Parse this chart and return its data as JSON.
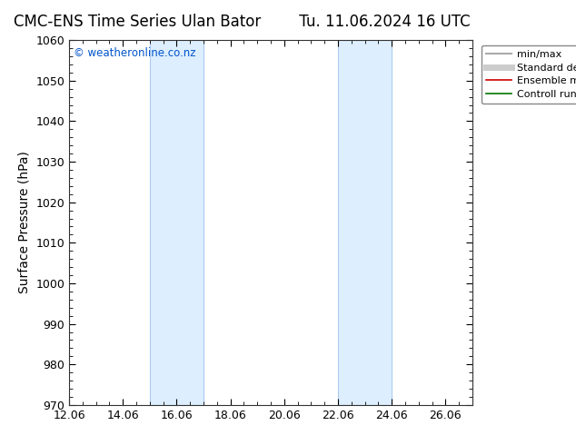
{
  "title": "CMC-ENS Time Series Ulan Bator",
  "title2": "Tu. 11.06.2024 16 UTC",
  "ylabel": "Surface Pressure (hPa)",
  "ylim": [
    970,
    1060
  ],
  "yticks": [
    970,
    980,
    990,
    1000,
    1010,
    1020,
    1030,
    1040,
    1050,
    1060
  ],
  "xtick_labels": [
    "12.06",
    "14.06",
    "16.06",
    "18.06",
    "20.06",
    "22.06",
    "24.06",
    "26.06"
  ],
  "xstart": 12,
  "xend": 27,
  "xtick_positions": [
    12,
    14,
    16,
    18,
    20,
    22,
    24,
    26
  ],
  "shade_bands": [
    {
      "start": 15,
      "end": 17
    },
    {
      "start": 22,
      "end": 24
    }
  ],
  "shade_color": "#ddeeff",
  "shade_edge_color": "#aaccee",
  "watermark": "© weatheronline.co.nz",
  "watermark_color": "#0055cc",
  "legend_items": [
    {
      "label": "min/max",
      "color": "#aaaaaa",
      "lw": 1.5,
      "ls": "-"
    },
    {
      "label": "Standard deviation",
      "color": "#cccccc",
      "lw": 5,
      "ls": "-"
    },
    {
      "label": "Ensemble mean run",
      "color": "#cc0000",
      "lw": 1.2,
      "ls": "-"
    },
    {
      "label": "Controll run",
      "color": "#007700",
      "lw": 1.2,
      "ls": "-"
    }
  ],
  "background_color": "#ffffff",
  "title_fontsize": 12,
  "axis_label_fontsize": 10,
  "tick_fontsize": 9,
  "legend_fontsize": 8
}
